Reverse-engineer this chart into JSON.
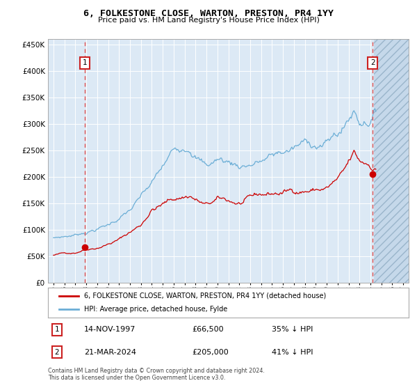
{
  "title": "6, FOLKESTONE CLOSE, WARTON, PRESTON, PR4 1YY",
  "subtitle": "Price paid vs. HM Land Registry's House Price Index (HPI)",
  "legend_line1": "6, FOLKESTONE CLOSE, WARTON, PRESTON, PR4 1YY (detached house)",
  "legend_line2": "HPI: Average price, detached house, Fylde",
  "annotation1_date": "14-NOV-1997",
  "annotation1_price": "£66,500",
  "annotation1_hpi": "35% ↓ HPI",
  "annotation2_date": "21-MAR-2024",
  "annotation2_price": "£205,000",
  "annotation2_hpi": "41% ↓ HPI",
  "footer": "Contains HM Land Registry data © Crown copyright and database right 2024.\nThis data is licensed under the Open Government Licence v3.0.",
  "hpi_color": "#6baed6",
  "price_color": "#cc0000",
  "dot_color": "#cc0000",
  "vline_color": "#e05050",
  "background_color": "#dce9f5",
  "ylim": [
    0,
    460000
  ],
  "yticks": [
    0,
    50000,
    100000,
    150000,
    200000,
    250000,
    300000,
    350000,
    400000,
    450000
  ],
  "sale1_x": 1997.87,
  "sale1_y": 66500,
  "sale2_x": 2024.22,
  "sale2_y": 205000,
  "future_start": 2024.35,
  "xlim_left": 1994.5,
  "xlim_right": 2027.5
}
